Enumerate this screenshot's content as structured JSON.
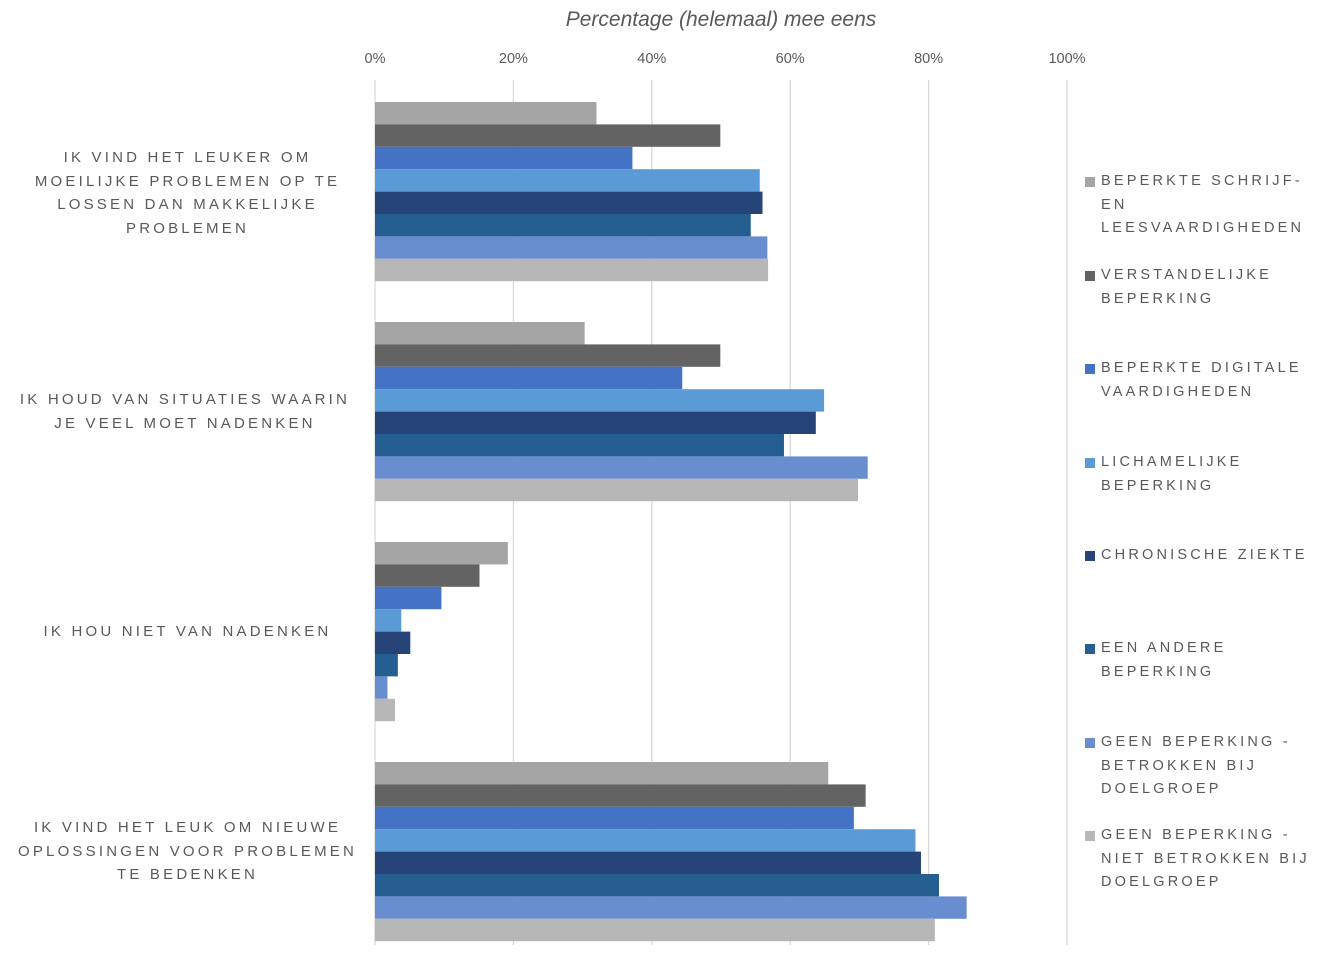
{
  "chart_data": {
    "type": "bar",
    "orientation": "horizontal",
    "title": "Percentage (helemaal) mee eens",
    "xlim": [
      0,
      100
    ],
    "x_ticks": [
      "0%",
      "20%",
      "40%",
      "60%",
      "80%",
      "100%"
    ],
    "x_tick_values": [
      0,
      20,
      40,
      60,
      80,
      100
    ],
    "grid": true,
    "legend_position": "right",
    "categories": [
      "IK VIND HET LEUKER OM MOEILIJKE PROBLEMEN OP TE LOSSEN DAN MAKKELIJKE PROBLEMEN",
      "IK HOUD VAN SITUATIES WAARIN JE VEEL MOET NADENKEN",
      "IK HOU NIET VAN NADENKEN",
      "IK VIND HET LEUK OM NIEUWE OPLOSSINGEN VOOR PROBLEMEN TE BEDENKEN"
    ],
    "series": [
      {
        "name": "BEPERKTE SCHRIJF- EN LEESVAARDIGHEDEN",
        "color": "#a5a5a5",
        "values": [
          32,
          30.3,
          19.2,
          65.5
        ]
      },
      {
        "name": "VERSTANDELIJKE BEPERKING",
        "color": "#636363",
        "values": [
          49.9,
          49.9,
          15.1,
          70.9
        ]
      },
      {
        "name": "BEPERKTE DIGITALE VAARDIGHEDEN",
        "color": "#4472c4",
        "values": [
          37.2,
          44.4,
          9.6,
          69.2
        ]
      },
      {
        "name": "LICHAMELIJKE BEPERKING",
        "color": "#5b9bd5",
        "values": [
          55.6,
          64.9,
          3.8,
          78.1
        ]
      },
      {
        "name": "CHRONISCHE ZIEKTE",
        "color": "#264478",
        "values": [
          56,
          63.7,
          5.1,
          78.9
        ]
      },
      {
        "name": "EEN ANDERE BEPERKING",
        "color": "#255e91",
        "values": [
          54.3,
          59.1,
          3.3,
          81.5
        ]
      },
      {
        "name": "GEEN BEPERKING - BETROKKEN BIJ DOELGROEP",
        "color": "#698ed0",
        "values": [
          56.7,
          71.2,
          1.8,
          85.5
        ]
      },
      {
        "name": "GEEN BEPERKING - NIET BETROKKEN BIJ DOELGROEP",
        "color": "#b7b7b7",
        "values": [
          56.8,
          69.8,
          2.9,
          80.9
        ]
      }
    ]
  }
}
